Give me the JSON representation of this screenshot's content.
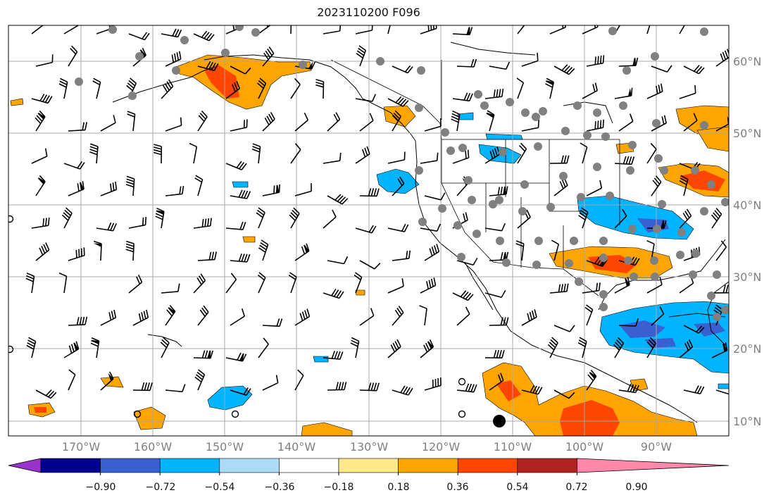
{
  "title": "2023110200 F096",
  "map": {
    "lon_labels": [
      "170°W",
      "160°W",
      "150°W",
      "140°W",
      "130°W",
      "120°W",
      "110°W",
      "100°W",
      "90°W"
    ],
    "lat_labels": [
      "10°N",
      "20°N",
      "30°N",
      "40°N",
      "50°N",
      "60°N"
    ],
    "lon_range": [
      -180,
      -80
    ],
    "lat_range": [
      8,
      65
    ],
    "gridlines": true,
    "colors": {
      "coast": "#000000",
      "grid": "#a8a8a8",
      "station": "#808080"
    }
  },
  "colorbar": {
    "ticks": [
      "−0.90",
      "−0.72",
      "−0.54",
      "−0.36",
      "−0.18",
      "0.18",
      "0.36",
      "0.54",
      "0.72",
      "0.90"
    ],
    "colors": [
      "#9933cc",
      "#000090",
      "#3a5fd0",
      "#00b4ff",
      "#aadcf5",
      "#ffffff",
      "#ffe88a",
      "#ffa500",
      "#ff4500",
      "#b22222",
      "#ff88aa"
    ]
  }
}
